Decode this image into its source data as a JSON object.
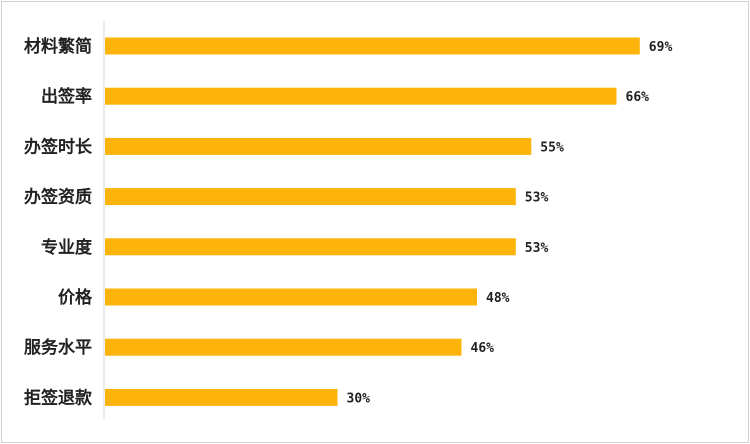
{
  "chart_data": {
    "type": "bar",
    "orientation": "horizontal",
    "categories": [
      "材料繁简",
      "出签率",
      "办签时长",
      "办签资质",
      "专业度",
      "价格",
      "服务水平",
      "拒签退款"
    ],
    "values": [
      69,
      66,
      55,
      53,
      53,
      48,
      46,
      30
    ],
    "value_labels": [
      "69%",
      "66%",
      "55%",
      "53%",
      "53%",
      "48%",
      "46%",
      "30%"
    ],
    "title": "",
    "xlabel": "",
    "ylabel": "",
    "xlim": [
      0,
      100
    ],
    "grid": false,
    "legend": "none",
    "bar_color": "#FDB40A"
  }
}
